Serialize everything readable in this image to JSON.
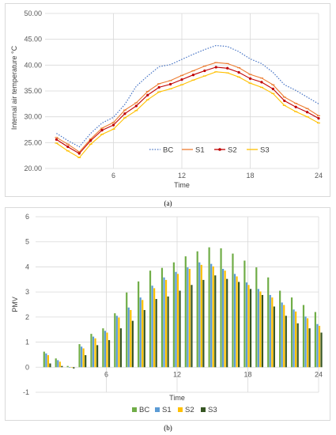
{
  "figure": {
    "caption_a": "(a)",
    "caption_b": "(b)"
  },
  "chart_data": [
    {
      "type": "line",
      "xlabel": "Time",
      "ylabel": "Internal air temperature °C",
      "xlim": [
        0,
        24
      ],
      "ylim": [
        20,
        50
      ],
      "x_ticks": [
        6,
        12,
        18,
        24
      ],
      "y_ticks": [
        "20.00",
        "25.00",
        "30.00",
        "35.00",
        "40.00",
        "45.00",
        "50.00"
      ],
      "grid": true,
      "legend_position": "bottom-center-inside",
      "x": [
        1,
        2,
        3,
        4,
        5,
        6,
        7,
        8,
        9,
        10,
        11,
        12,
        13,
        14,
        15,
        16,
        17,
        18,
        19,
        20,
        21,
        22,
        23,
        24
      ],
      "series": [
        {
          "name": "BC",
          "color": "#4472c4",
          "style": "dotted",
          "marker": "none",
          "values": [
            26.8,
            25.4,
            24.2,
            26.8,
            28.8,
            29.9,
            32.4,
            35.9,
            37.9,
            39.7,
            40.1,
            41.1,
            42.1,
            43.0,
            43.8,
            43.6,
            42.6,
            41.2,
            40.3,
            38.6,
            36.2,
            35.1,
            33.8,
            32.5
          ]
        },
        {
          "name": "S1",
          "color": "#ed7d31",
          "style": "solid",
          "marker": "dash",
          "values": [
            26.0,
            24.7,
            23.2,
            25.7,
            27.8,
            28.9,
            31.3,
            32.7,
            34.9,
            36.4,
            37.0,
            38.0,
            38.9,
            39.8,
            40.5,
            40.3,
            39.5,
            38.2,
            37.5,
            36.2,
            33.8,
            32.6,
            31.6,
            30.2
          ]
        },
        {
          "name": "S2",
          "color": "#c00000",
          "style": "solid",
          "marker": "circle",
          "values": [
            25.6,
            24.2,
            22.9,
            25.4,
            27.4,
            28.4,
            30.6,
            32.1,
            34.2,
            35.7,
            36.3,
            37.2,
            38.1,
            38.9,
            39.6,
            39.4,
            38.6,
            37.4,
            36.7,
            35.4,
            33.1,
            31.9,
            30.9,
            29.7
          ]
        },
        {
          "name": "S3",
          "color": "#ffc000",
          "style": "solid",
          "marker": "dash",
          "values": [
            24.9,
            23.4,
            22.1,
            24.7,
            26.6,
            27.6,
            29.8,
            31.2,
            33.3,
            34.8,
            35.4,
            36.2,
            37.1,
            37.9,
            38.7,
            38.5,
            37.7,
            36.5,
            35.7,
            34.5,
            32.2,
            31.0,
            30.0,
            28.8
          ]
        }
      ]
    },
    {
      "type": "bar",
      "xlabel": "Time",
      "ylabel": "PMV",
      "xlim": [
        0,
        24
      ],
      "ylim": [
        -1,
        6
      ],
      "x_ticks": [
        6,
        12,
        18,
        24
      ],
      "y_ticks": [
        "-1",
        "0",
        "1",
        "2",
        "3",
        "4",
        "5",
        "6"
      ],
      "grid": true,
      "legend_position": "bottom",
      "categories": [
        1,
        2,
        3,
        4,
        5,
        6,
        7,
        8,
        9,
        10,
        11,
        12,
        13,
        14,
        15,
        16,
        17,
        18,
        19,
        20,
        21,
        22,
        23,
        24
      ],
      "series": [
        {
          "name": "BC",
          "color": "#70ad47",
          "values": [
            0.62,
            0.35,
            0.05,
            0.92,
            1.33,
            1.55,
            2.15,
            2.98,
            3.42,
            3.85,
            3.96,
            4.18,
            4.42,
            4.62,
            4.78,
            4.74,
            4.53,
            4.25,
            3.98,
            3.58,
            3.05,
            2.78,
            2.48,
            2.2
          ]
        },
        {
          "name": "S1",
          "color": "#5b9bd5",
          "values": [
            0.55,
            0.28,
            0.0,
            0.82,
            1.22,
            1.45,
            2.05,
            2.38,
            2.78,
            3.25,
            3.58,
            3.8,
            3.98,
            4.18,
            4.12,
            3.92,
            3.72,
            3.38,
            3.12,
            2.88,
            2.58,
            2.3,
            2.02,
            1.72
          ]
        },
        {
          "name": "S2",
          "color": "#ffc000",
          "values": [
            0.48,
            0.22,
            -0.02,
            0.75,
            1.15,
            1.38,
            1.98,
            2.28,
            2.68,
            3.15,
            3.48,
            3.72,
            3.92,
            4.08,
            4.02,
            3.85,
            3.62,
            3.28,
            3.02,
            2.78,
            2.48,
            2.22,
            1.95,
            1.65
          ]
        },
        {
          "name": "S3",
          "color": "#375623",
          "values": [
            0.15,
            0.05,
            -0.05,
            0.48,
            0.88,
            1.08,
            1.55,
            1.85,
            2.28,
            2.72,
            2.82,
            3.05,
            3.28,
            3.48,
            3.66,
            3.52,
            3.4,
            3.12,
            2.88,
            2.42,
            2.05,
            1.75,
            1.55,
            1.38
          ]
        }
      ]
    }
  ]
}
